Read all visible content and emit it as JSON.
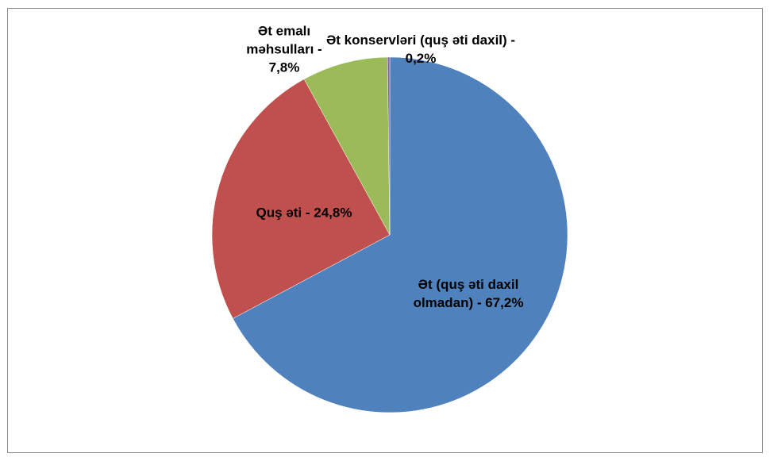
{
  "chart_data": {
    "type": "pie",
    "categories": [
      "Ət (quş əti daxil olmadan) - 67,2%",
      "Quş əti - 24,8%",
      "Ət emalı məhsulları - 7,8%",
      "Ət konservləri (quş əti daxil) - 0,2%"
    ],
    "values": [
      67.2,
      24.8,
      7.8,
      0.2
    ],
    "colors": [
      "#4f81bd",
      "#c0504d",
      "#9bbb59",
      "#8064a2"
    ]
  }
}
